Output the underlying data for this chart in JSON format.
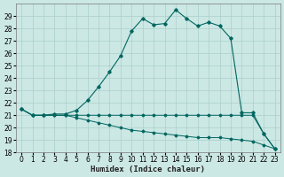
{
  "xlabel": "Humidex (Indice chaleur)",
  "background_color": "#cce8e4",
  "grid_color": "#aacfcb",
  "line_color": "#006660",
  "xlim": [
    -0.5,
    23.5
  ],
  "ylim": [
    18,
    30
  ],
  "xticks": [
    0,
    1,
    2,
    3,
    4,
    5,
    6,
    7,
    8,
    9,
    10,
    11,
    12,
    13,
    14,
    15,
    16,
    17,
    18,
    19,
    20,
    21,
    22,
    23
  ],
  "yticks": [
    18,
    19,
    20,
    21,
    22,
    23,
    24,
    25,
    26,
    27,
    28,
    29
  ],
  "series1_x": [
    0,
    1,
    2,
    3,
    4,
    5,
    6,
    7,
    8,
    9,
    10,
    11,
    12,
    13,
    14,
    15,
    16,
    17,
    18,
    19,
    20,
    21,
    22,
    23
  ],
  "series1_y": [
    21.5,
    21.0,
    21.0,
    21.1,
    21.1,
    21.4,
    22.2,
    23.3,
    24.5,
    25.8,
    27.8,
    28.8,
    28.3,
    28.4,
    29.5,
    28.8,
    28.2,
    28.5,
    28.2,
    27.2,
    21.2,
    21.2,
    19.5,
    18.3
  ],
  "series2_x": [
    0,
    1,
    2,
    3,
    4,
    5,
    6,
    7,
    8,
    9,
    10,
    11,
    12,
    13,
    14,
    15,
    16,
    17,
    18,
    19,
    20,
    21,
    22,
    23
  ],
  "series2_y": [
    21.5,
    21.0,
    21.0,
    21.0,
    21.0,
    21.0,
    21.0,
    21.0,
    21.0,
    21.0,
    21.0,
    21.0,
    21.0,
    21.0,
    21.0,
    21.0,
    21.0,
    21.0,
    21.0,
    21.0,
    21.0,
    21.0,
    19.5,
    18.3
  ],
  "series3_x": [
    0,
    1,
    2,
    3,
    4,
    5,
    6,
    7,
    8,
    9,
    10,
    11,
    12,
    13,
    14,
    15,
    16,
    17,
    18,
    19,
    20,
    21,
    22,
    23
  ],
  "series3_y": [
    21.5,
    21.0,
    21.0,
    21.0,
    21.0,
    20.8,
    20.6,
    20.4,
    20.2,
    20.0,
    19.8,
    19.7,
    19.6,
    19.5,
    19.4,
    19.3,
    19.2,
    19.2,
    19.2,
    19.1,
    19.0,
    18.9,
    18.6,
    18.3
  ],
  "xlabel_fontsize": 6.5,
  "tick_fontsize": 5.5
}
